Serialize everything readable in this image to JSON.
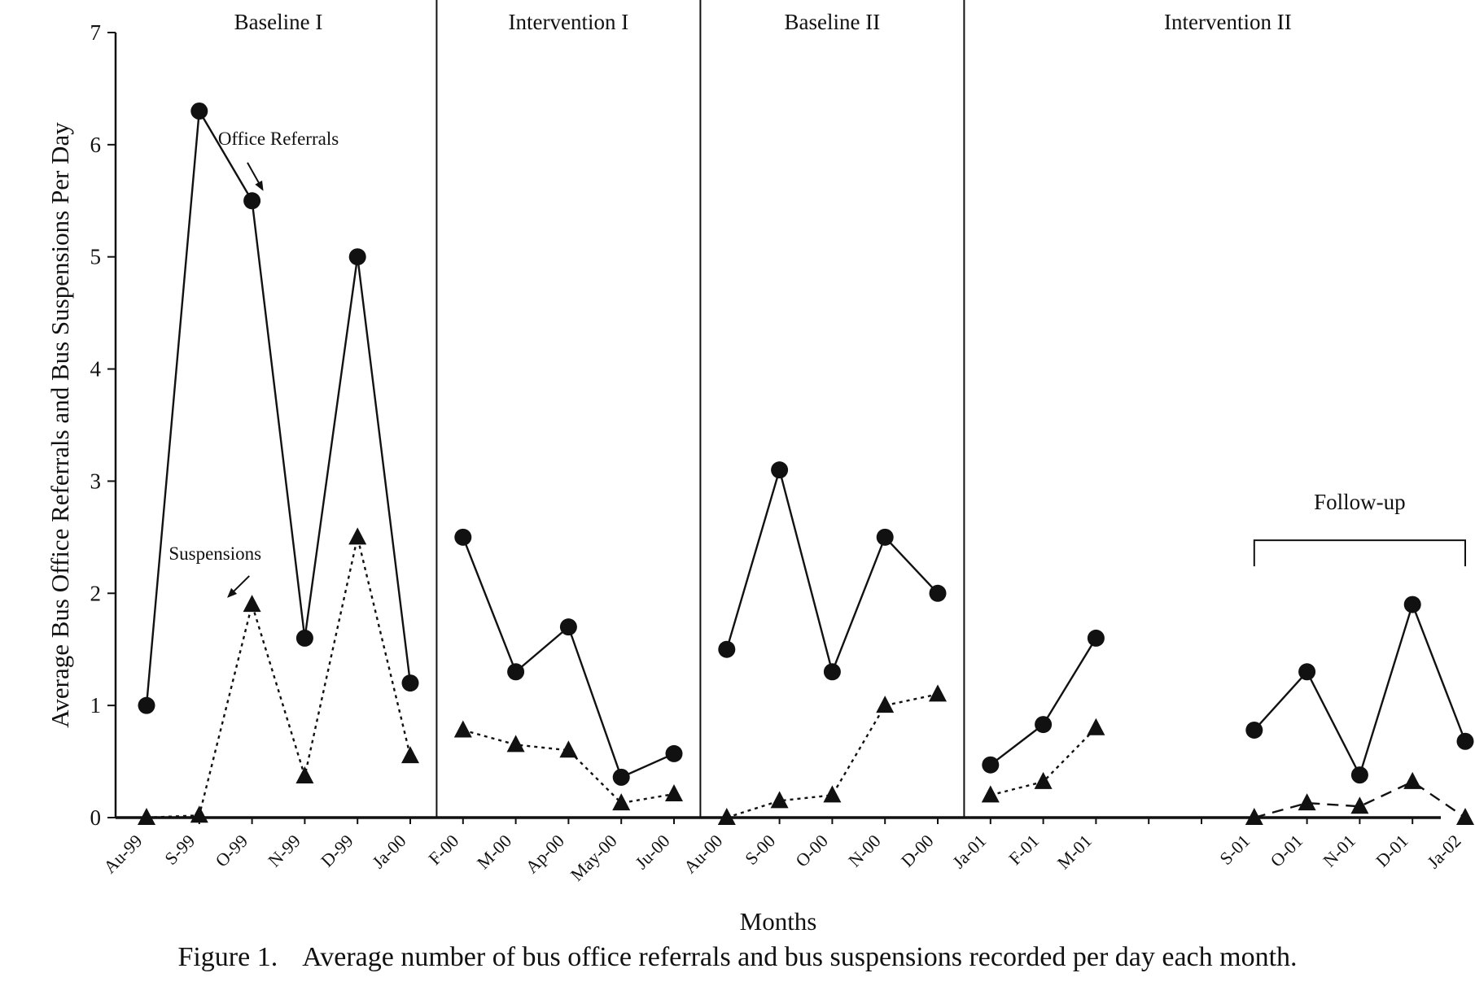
{
  "caption": {
    "label": "Figure 1.",
    "text": "Average number of bus office referrals and bus suspensions recorded per day each month."
  },
  "chart_data": {
    "type": "line",
    "xlabel": "Months",
    "ylabel": "Average Bus Office Referrals and Bus Suspensions Per Day",
    "ylim": [
      0,
      7
    ],
    "yticks": [
      0,
      1,
      2,
      3,
      4,
      5,
      6,
      7
    ],
    "grid": false,
    "categories": [
      "Au-99",
      "S-99",
      "O-99",
      "N-99",
      "D-99",
      "Ja-00",
      "F-00",
      "M-00",
      "Ap-00",
      "May-00",
      "Ju-00",
      "Au-00",
      "S-00",
      "O-00",
      "N-00",
      "D-00",
      "Ja-01",
      "F-01",
      "M-01",
      "",
      "",
      "S-01",
      "O-01",
      "N-01",
      "D-01",
      "Ja-02"
    ],
    "phases": [
      {
        "label": "Baseline I",
        "start": 0,
        "end": 5
      },
      {
        "label": "Intervention I",
        "start": 6,
        "end": 10
      },
      {
        "label": "Baseline II",
        "start": 11,
        "end": 15
      },
      {
        "label": "Intervention II",
        "start": 16,
        "end": 25
      }
    ],
    "series": [
      {
        "name": "Office Referrals",
        "marker": "circle",
        "line_style": "solid",
        "segments": [
          {
            "x": [
              0,
              1,
              2,
              3,
              4,
              5
            ],
            "values": [
              1.0,
              6.3,
              5.5,
              1.6,
              5.0,
              1.2
            ]
          },
          {
            "x": [
              6,
              7,
              8,
              9,
              10
            ],
            "values": [
              2.5,
              1.3,
              1.7,
              0.36,
              0.57
            ]
          },
          {
            "x": [
              11,
              12,
              13,
              14,
              15
            ],
            "values": [
              1.5,
              3.1,
              1.3,
              2.5,
              2.0
            ]
          },
          {
            "x": [
              16,
              17,
              18
            ],
            "values": [
              0.47,
              0.83,
              1.6
            ]
          },
          {
            "x": [
              21,
              22,
              23,
              24,
              25
            ],
            "values": [
              0.78,
              1.3,
              0.38,
              1.9,
              0.68
            ]
          }
        ]
      },
      {
        "name": "Suspensions",
        "marker": "triangle",
        "line_style": "dotted",
        "segments": [
          {
            "x": [
              0,
              1,
              2,
              3,
              4,
              5
            ],
            "values": [
              0.0,
              0.02,
              1.9,
              0.37,
              2.5,
              0.55
            ]
          },
          {
            "x": [
              6,
              7,
              8,
              9,
              10
            ],
            "values": [
              0.78,
              0.65,
              0.6,
              0.13,
              0.21
            ]
          },
          {
            "x": [
              11,
              12,
              13,
              14,
              15
            ],
            "values": [
              0.0,
              0.15,
              0.2,
              1.0,
              1.1
            ]
          },
          {
            "x": [
              16,
              17,
              18
            ],
            "values": [
              0.2,
              0.32,
              0.8
            ]
          },
          {
            "x": [
              21,
              22,
              23,
              24,
              25
            ],
            "values": [
              0.0,
              0.13,
              0.1,
              0.32,
              0.0
            ],
            "line_style": "dashed"
          }
        ]
      }
    ],
    "annotations": [
      {
        "text": "Office Referrals",
        "points_to": "Office Referrals",
        "x": 2.5,
        "y": 6.0,
        "target_x": 2.2,
        "target_y": 5.6
      },
      {
        "text": "Suspensions",
        "points_to": "Suspensions",
        "x": 1.3,
        "y": 2.3,
        "target_x": 1.55,
        "target_y": 1.97
      },
      {
        "text": "Follow-up",
        "bracket_start": 21,
        "bracket_end": 25,
        "y": 2.85
      }
    ]
  }
}
